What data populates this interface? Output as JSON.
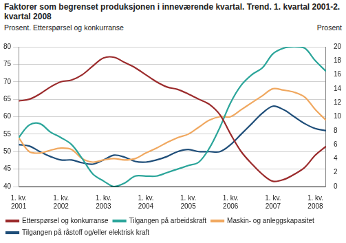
{
  "chart_data": {
    "type": "line",
    "title": "Faktorer som begrenset produksjonen i inneværende kvartal. Trend. 1. kvartal 2001-2. kvartal 2008",
    "y_label": "Prosent. Etterspørsel og konkurranse",
    "y2_label": "Prosent",
    "categories": [
      "1. kv. 2001",
      null,
      null,
      null,
      "1. kv. 2002",
      null,
      null,
      null,
      "1. kv. 2003",
      null,
      null,
      null,
      "1. kv. 2004",
      null,
      null,
      null,
      "1. kv. 2005",
      null,
      null,
      null,
      "1. kv. 2006",
      null,
      null,
      null,
      "1. kv. 2007",
      null,
      null,
      null,
      "1. kv. 2008",
      null
    ],
    "series": [
      {
        "name": "Etterspørsel og konkurranse",
        "color": "#9b2b2c",
        "values": [
          64.5,
          65,
          66.5,
          68.5,
          70,
          70.5,
          72,
          74.5,
          76.8,
          77,
          75.5,
          74,
          72,
          70,
          68.5,
          67.8,
          66.5,
          65,
          63.5,
          60.5,
          55,
          50,
          46.5,
          43.5,
          41.5,
          42,
          43.5,
          45.5,
          49,
          51.5
        ]
      },
      {
        "name": "Tilgangen på arbeidskraft",
        "color": "#2ba59a",
        "axis": "y2",
        "values": [
          7,
          8.8,
          9,
          7.8,
          7,
          6,
          4,
          1.8,
          0.8,
          0,
          0.5,
          1.5,
          1.5,
          1.5,
          2,
          2.5,
          3,
          3.5,
          5.5,
          8.5,
          12,
          14.5,
          16,
          17,
          19,
          19.8,
          20,
          19.8,
          18,
          16.5
        ]
      },
      {
        "name": "Maskin- og anleggskapasitet",
        "color": "#f0a860",
        "axis": "y2",
        "values": [
          7,
          5,
          4.8,
          5.2,
          5.5,
          5.3,
          4,
          3.5,
          3.8,
          4,
          3.8,
          4,
          4.8,
          5.5,
          6.3,
          7,
          7.5,
          8.5,
          9.5,
          10,
          10,
          11,
          12,
          13,
          14,
          13.8,
          13.5,
          12.8,
          11,
          9.5
        ]
      },
      {
        "name": "Tilgangen på råstoff og/eller elektrisk kraft",
        "color": "#1f4e79",
        "axis": "y2",
        "values": [
          6,
          5.8,
          5,
          4.3,
          3.8,
          3.8,
          3.4,
          3.2,
          3.8,
          4.5,
          4.2,
          3.6,
          3.5,
          3.8,
          4.3,
          5,
          5.3,
          5,
          5,
          5,
          6,
          7.5,
          9,
          10.5,
          11.5,
          11,
          10,
          9,
          8.3,
          8
        ]
      }
    ],
    "ylim": [
      40,
      80
    ],
    "yticks": [
      40,
      45,
      50,
      55,
      60,
      65,
      70,
      75,
      80
    ],
    "y2lim": [
      0,
      20
    ],
    "y2ticks": [
      0,
      2,
      4,
      6,
      8,
      10,
      12,
      14,
      16,
      18,
      20
    ],
    "grid": true,
    "legend": "bottom"
  }
}
